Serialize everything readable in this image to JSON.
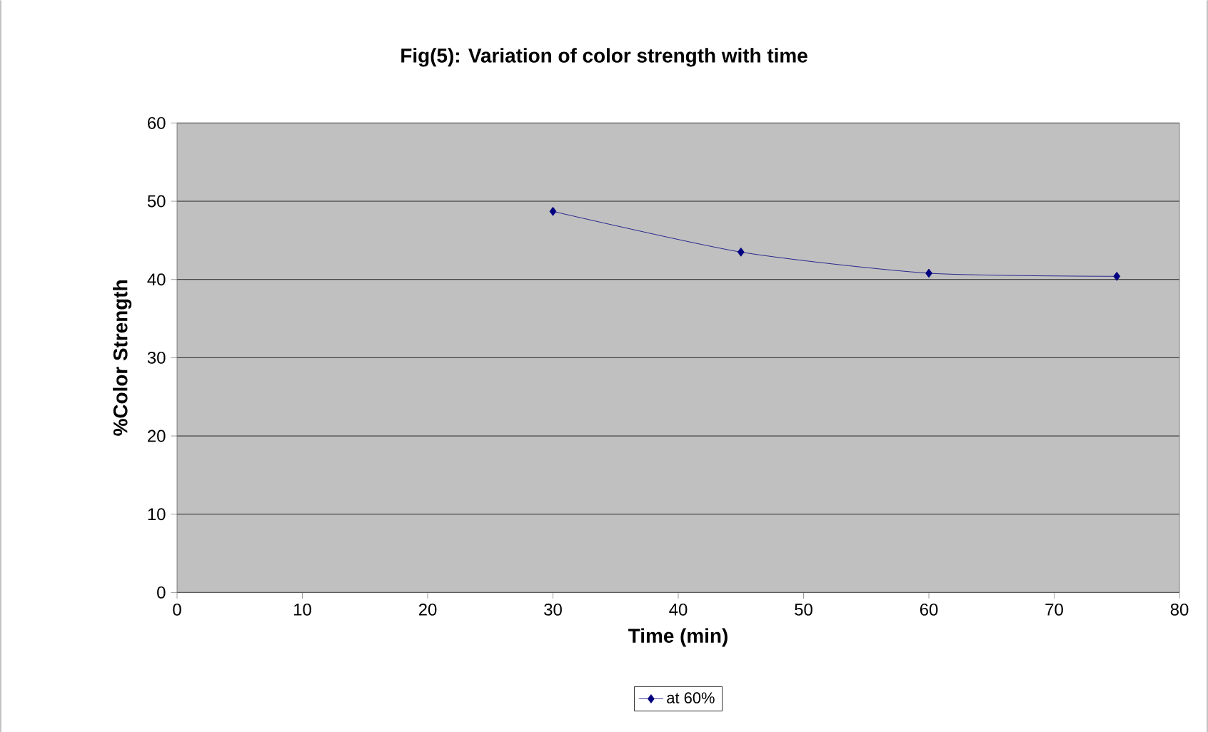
{
  "chart_data": {
    "type": "line",
    "title": "Fig(5):  Variation of color strength with time",
    "xlabel": "Time (min)",
    "ylabel": "%Color Strength",
    "x": [
      30,
      45,
      60,
      75
    ],
    "series": [
      {
        "name": "at 60%",
        "color": "#000080",
        "values": [
          48.7,
          43.5,
          40.8,
          40.4
        ]
      }
    ],
    "xlim": [
      0,
      80
    ],
    "xticks": [
      0,
      10,
      20,
      30,
      40,
      50,
      60,
      70,
      80
    ],
    "ylim": [
      0,
      60
    ],
    "yticks": [
      0,
      10,
      20,
      30,
      40,
      50,
      60
    ],
    "grid": "y",
    "legend": "bottom",
    "marker": "diamond",
    "line_style": "solid"
  }
}
